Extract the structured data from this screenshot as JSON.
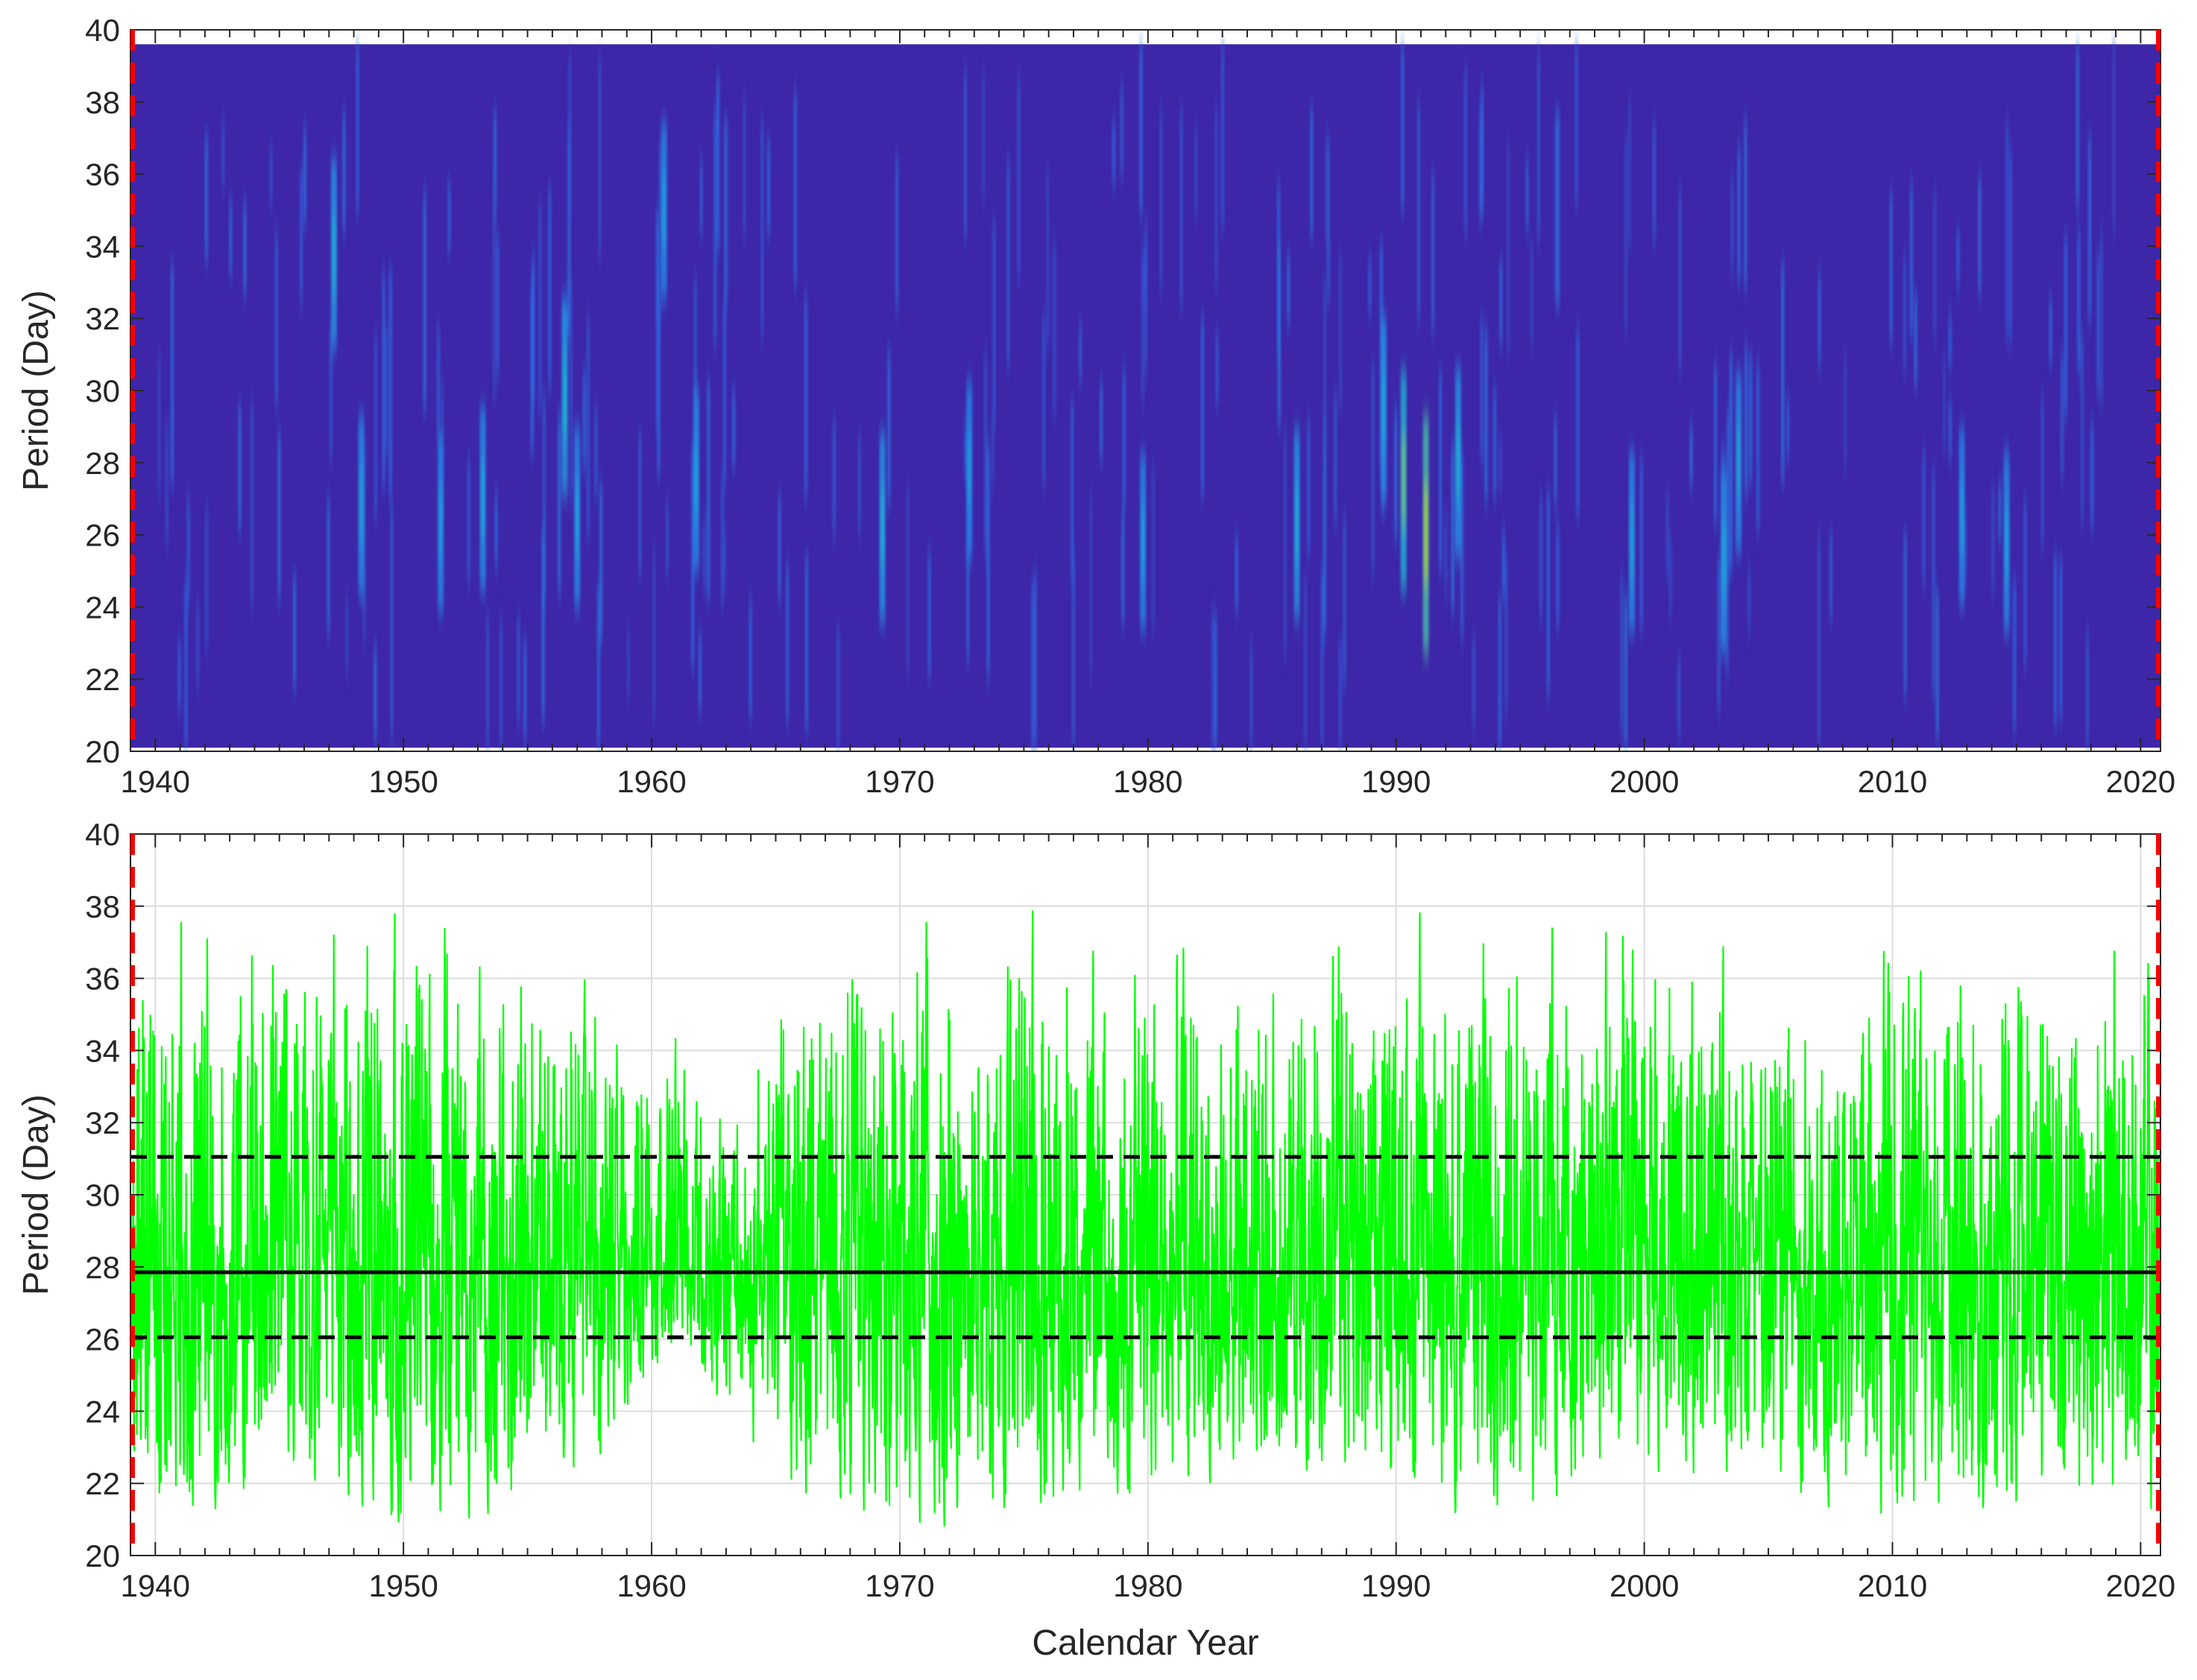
{
  "chart_data": [
    {
      "type": "heatmap",
      "title": "",
      "xlabel": "",
      "ylabel": "Period (Day)",
      "xlim": [
        1939,
        2020.8
      ],
      "ylim": [
        20,
        40
      ],
      "xticks": [
        1940,
        1950,
        1960,
        1970,
        1980,
        1990,
        2000,
        2010,
        2020
      ],
      "yticks": [
        20,
        22,
        24,
        26,
        28,
        30,
        32,
        34,
        36,
        38,
        40
      ],
      "colormap": "parula",
      "background_color": "#3e26a8",
      "data_extent": {
        "x": [
          1939,
          2020.8
        ],
        "y": [
          20.1,
          39.6
        ]
      },
      "boundary_lines": {
        "x": [
          1939,
          2020.8
        ],
        "style": "dashed",
        "color": "#ff0000"
      },
      "hotspots": [
        {
          "year": 1947.2,
          "period": 33.8,
          "intensity": 0.45
        },
        {
          "year": 1948.3,
          "period": 26.8,
          "intensity": 0.4
        },
        {
          "year": 1951.5,
          "period": 26.3,
          "intensity": 0.38
        },
        {
          "year": 1953.2,
          "period": 27.0,
          "intensity": 0.42
        },
        {
          "year": 1956.5,
          "period": 29.8,
          "intensity": 0.48
        },
        {
          "year": 1957.0,
          "period": 26.5,
          "intensity": 0.4
        },
        {
          "year": 1960.5,
          "period": 35.0,
          "intensity": 0.38
        },
        {
          "year": 1961.8,
          "period": 27.5,
          "intensity": 0.4
        },
        {
          "year": 1969.3,
          "period": 26.2,
          "intensity": 0.45
        },
        {
          "year": 1972.8,
          "period": 27.8,
          "intensity": 0.38
        },
        {
          "year": 1979.8,
          "period": 25.8,
          "intensity": 0.38
        },
        {
          "year": 1986.0,
          "period": 26.3,
          "intensity": 0.45
        },
        {
          "year": 1989.5,
          "period": 29.5,
          "intensity": 0.42
        },
        {
          "year": 1990.3,
          "period": 27.5,
          "intensity": 0.62
        },
        {
          "year": 1991.2,
          "period": 26.0,
          "intensity": 0.72
        },
        {
          "year": 1992.5,
          "period": 28.0,
          "intensity": 0.45
        },
        {
          "year": 1999.5,
          "period": 25.8,
          "intensity": 0.4
        },
        {
          "year": 2003.2,
          "period": 25.3,
          "intensity": 0.42
        },
        {
          "year": 2003.8,
          "period": 28.0,
          "intensity": 0.4
        },
        {
          "year": 2012.8,
          "period": 26.5,
          "intensity": 0.38
        },
        {
          "year": 2014.6,
          "period": 25.8,
          "intensity": 0.4
        }
      ]
    },
    {
      "type": "line",
      "title": "",
      "xlabel": "Calendar Year",
      "ylabel": "Period (Day)",
      "xlim": [
        1939,
        2020.8
      ],
      "ylim": [
        20,
        40
      ],
      "xticks": [
        1940,
        1950,
        1960,
        1970,
        1980,
        1990,
        2000,
        2010,
        2020
      ],
      "yticks": [
        20,
        22,
        24,
        26,
        28,
        30,
        32,
        34,
        36,
        38,
        40
      ],
      "grid": true,
      "series_color": "#00ff00",
      "series_range": [
        20.3,
        39.7
      ],
      "series_envelope": {
        "years": [
          1939,
          1942,
          1946,
          1950,
          1955,
          1958,
          1961,
          1963,
          1966,
          1970,
          1974,
          1978,
          1981,
          1985,
          1990,
          1995,
          2000,
          2005,
          2010,
          2015,
          2020.8
        ],
        "upper": [
          39.5,
          39.6,
          39.6,
          39.5,
          39.6,
          36.5,
          36.0,
          32.5,
          38.5,
          39.6,
          39.5,
          39.0,
          39.6,
          38.0,
          38.5,
          39.0,
          39.4,
          37.5,
          39.4,
          39.2,
          39.5
        ],
        "lower": [
          20.5,
          21.0,
          22.0,
          20.5,
          21.0,
          22.5,
          26.0,
          23.5,
          21.0,
          20.5,
          20.5,
          21.5,
          21.5,
          22.5,
          21.0,
          20.5,
          22.0,
          21.5,
          20.5,
          20.5,
          20.5
        ]
      },
      "reference_lines": [
        {
          "y": 27.85,
          "style": "solid",
          "color": "#000000"
        },
        {
          "y": 31.05,
          "style": "dashed",
          "color": "#000000"
        },
        {
          "y": 26.05,
          "style": "dashed",
          "color": "#000000"
        }
      ],
      "boundary_lines": {
        "x": [
          1939,
          2020.8
        ],
        "style": "dashed",
        "color": "#ff0000"
      }
    }
  ]
}
